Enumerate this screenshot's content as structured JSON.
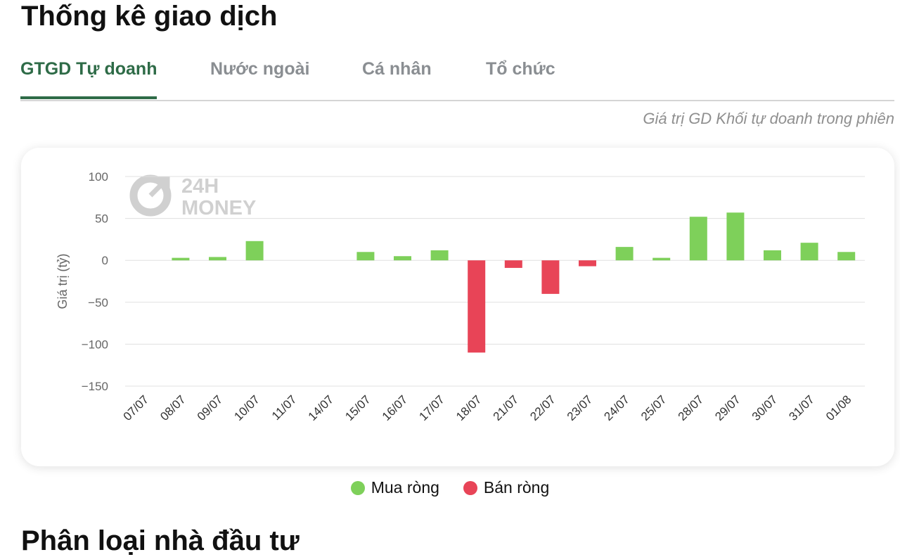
{
  "header": {
    "title": "Thống kê giao dịch"
  },
  "tabs": [
    "GTGD Tự doanh",
    "Nước ngoài",
    "Cá nhân",
    "Tổ chức"
  ],
  "subtitle": "Giá trị GD Khối tự doanh trong phiên",
  "watermark": [
    "24H",
    "MONEY"
  ],
  "chart_data": {
    "type": "bar",
    "y_label": "Giá trị (tỷ)",
    "categories": [
      "07/07",
      "08/07",
      "09/07",
      "10/07",
      "11/07",
      "14/07",
      "15/07",
      "16/07",
      "17/07",
      "18/07",
      "21/07",
      "22/07",
      "23/07",
      "24/07",
      "25/07",
      "28/07",
      "29/07",
      "30/07",
      "31/07",
      "01/08"
    ],
    "series": [
      {
        "name": "Mua ròng",
        "color": "#7ed05a",
        "values": [
          0,
          3,
          4,
          23,
          0,
          0,
          10,
          5,
          12,
          null,
          null,
          null,
          null,
          16,
          3,
          52,
          57,
          12,
          21,
          10
        ]
      },
      {
        "name": "Bán ròng",
        "color": "#e84457",
        "values": [
          null,
          null,
          null,
          null,
          null,
          null,
          null,
          null,
          null,
          -110,
          -9,
          -40,
          -7,
          null,
          null,
          null,
          null,
          null,
          null,
          null
        ]
      }
    ],
    "ylim": [
      -150,
      100
    ],
    "yticks": [
      {
        "value": -150,
        "label": "−150"
      },
      {
        "value": -100,
        "label": "−100"
      },
      {
        "value": -50,
        "label": "−50"
      },
      0,
      50,
      100
    ],
    "grid": true,
    "legend": "bottom"
  },
  "next_section": {
    "title": "Phân loại nhà đầu tư"
  }
}
